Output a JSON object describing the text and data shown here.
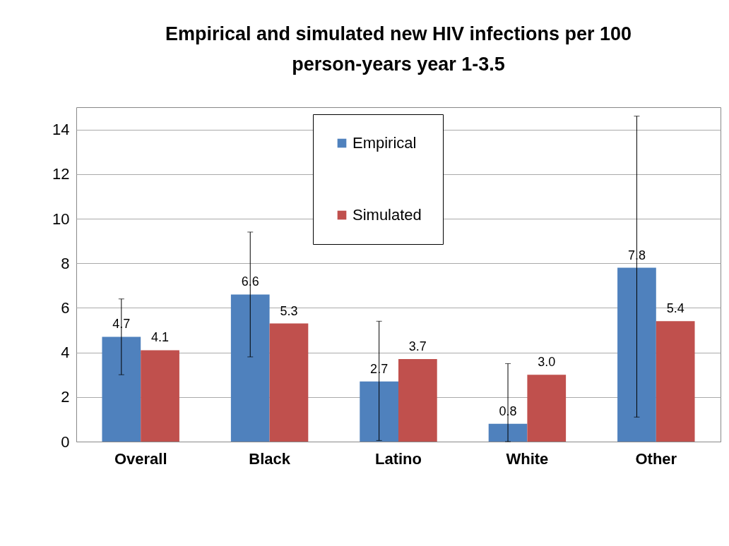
{
  "chart_data": {
    "type": "bar",
    "title": "Empirical and simulated new HIV infections per 100 person-years  year 1-3.5",
    "categories": [
      "Overall",
      "Black",
      "Latino",
      "White",
      "Other"
    ],
    "series": [
      {
        "name": "Empirical",
        "color": "#4f81bd",
        "values": [
          4.7,
          6.6,
          2.7,
          0.8,
          7.8
        ],
        "value_labels": [
          "4.7",
          "6.6",
          "2.7",
          "0.8",
          "7.8"
        ],
        "errors": [
          [
            3.0,
            6.4
          ],
          [
            3.8,
            9.4
          ],
          [
            0.05,
            5.4
          ],
          [
            0,
            3.5
          ],
          [
            1.1,
            14.6
          ]
        ]
      },
      {
        "name": "Simulated",
        "color": "#c0504d",
        "values": [
          4.1,
          5.3,
          3.7,
          3.0,
          5.4
        ],
        "value_labels": [
          "4.1",
          "5.3",
          "3.7",
          "3.0",
          "5.4"
        ]
      }
    ],
    "ylim": [
      0,
      15
    ],
    "yticks": [
      0,
      2,
      4,
      6,
      8,
      10,
      12,
      14
    ],
    "grid": "y",
    "legend": "top"
  }
}
